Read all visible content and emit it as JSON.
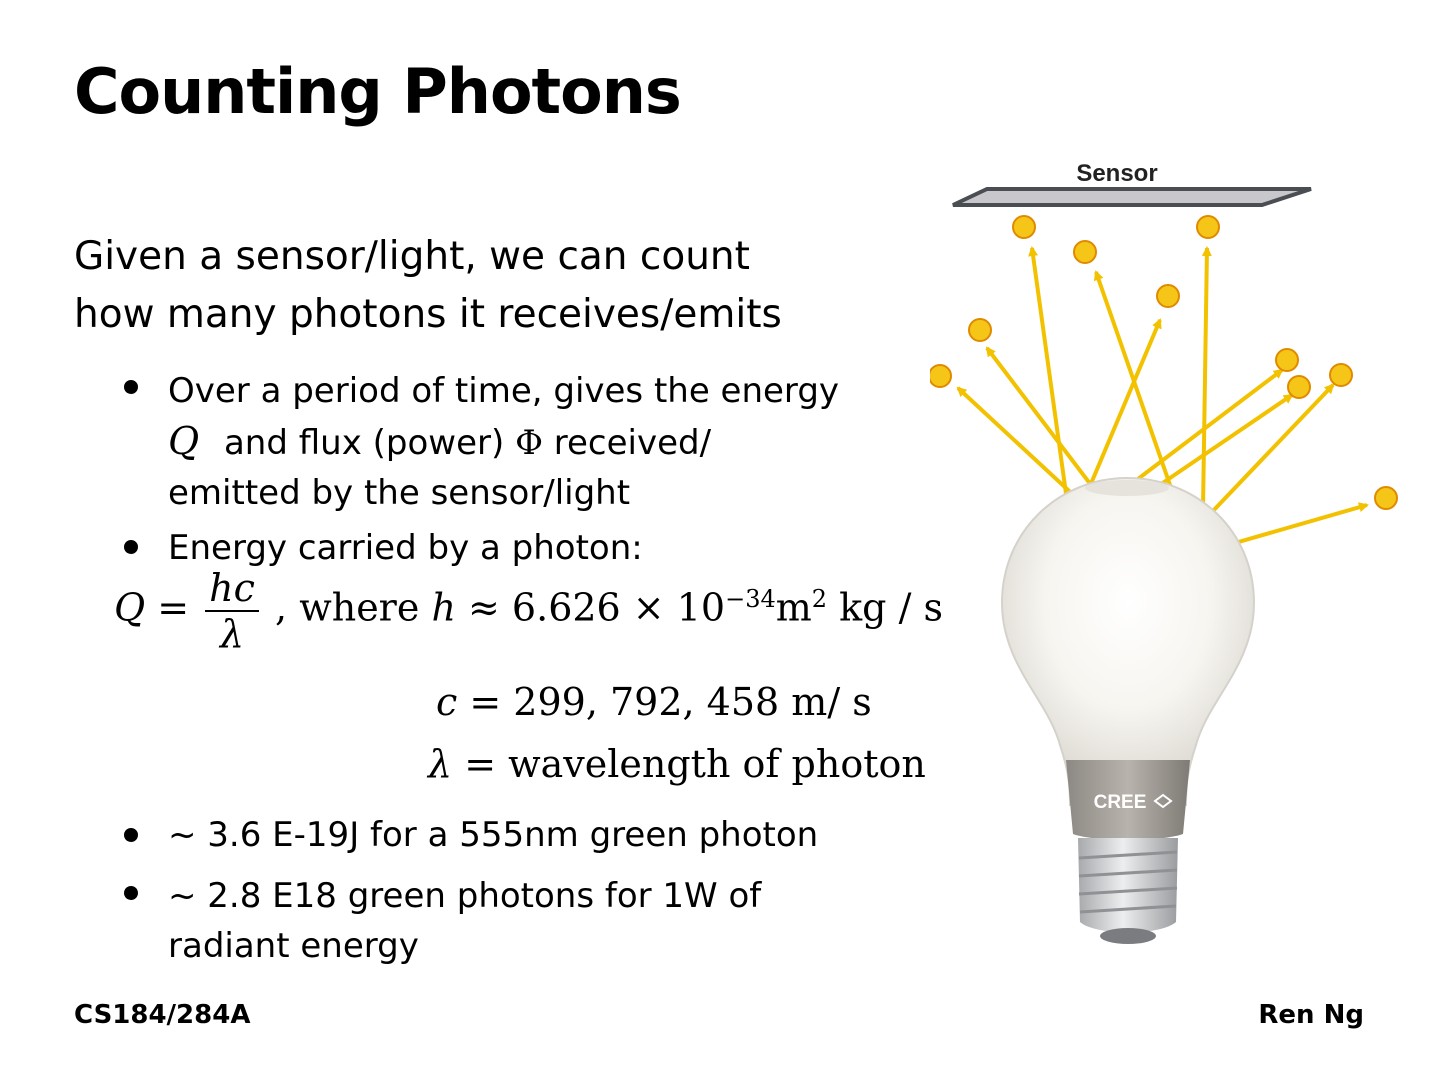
{
  "slide": {
    "title": "Counting Photons",
    "intro_line1": "Given a sensor/light, we can count",
    "intro_line2": "how many photons it receives/emits",
    "bullet1": {
      "line1": "Over a period of time, gives the energy",
      "sym_q": "Q",
      "line2_mid": "and flux (power)",
      "sym_phi": "Φ",
      "line2_end": "received/",
      "line3": "emitted by the sensor/light"
    },
    "bullet2": {
      "text": "Energy carried by a photon:"
    },
    "formula": {
      "lhs": "Q =",
      "num": "hc",
      "den": "λ",
      "where": ",  where",
      "h_sym": "h",
      "h_approx": "≈ 6.626 × 10",
      "h_exp": "−34",
      "h_units": "m",
      "h_units_exp": "2",
      "h_units_rest": " kg / s",
      "c_sym": "c",
      "c_val": "= 299, 792, 458 m/ s",
      "lambda_sym": "λ",
      "lambda_val": "= wavelength of photon"
    },
    "bullet3": {
      "text": "~ 3.6 E-19J for a 555nm green photon"
    },
    "bullet4": {
      "line1": "~ 2.8 E18 green photons for 1W of",
      "line2": "radiant energy"
    },
    "figure": {
      "sensor_label": "Sensor",
      "brand_label": "CREE"
    },
    "footer_left": "CS184/284A",
    "footer_right": "Ren Ng"
  },
  "colors": {
    "photon": "#f5c518",
    "arrow": "#f2c200",
    "sensor_fill": "#c8c8cc"
  }
}
